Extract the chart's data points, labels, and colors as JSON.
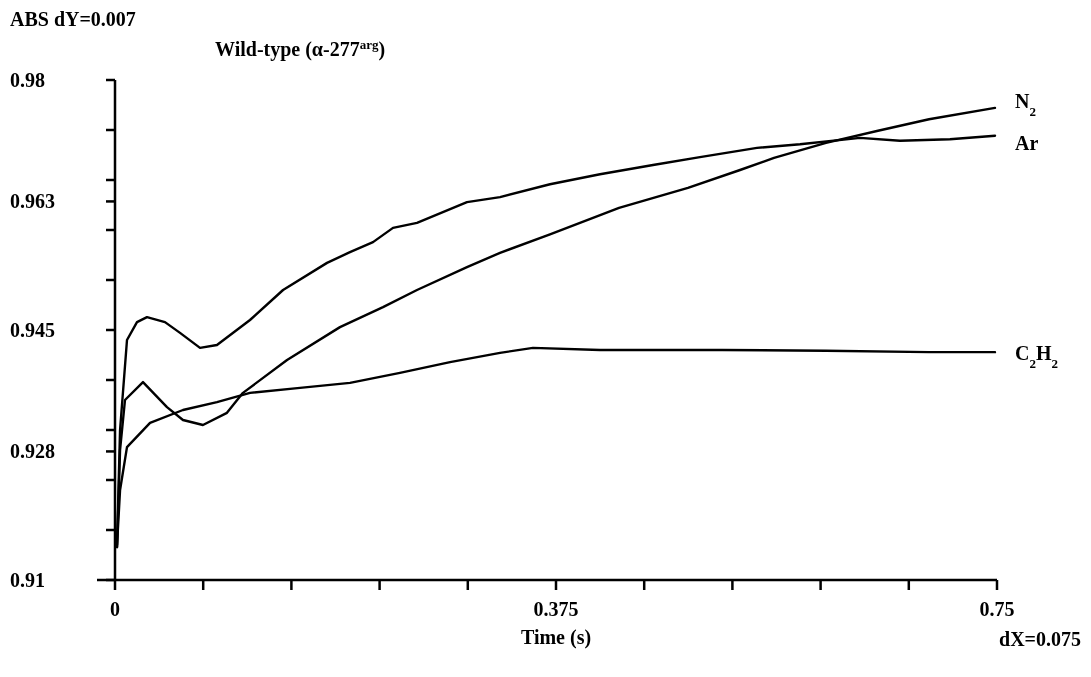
{
  "chart_data": {
    "type": "line",
    "title": "Wild-type (α-277$^{arg}$)",
    "ylabel": "ABS dY=0.007",
    "xlabel": "Time (s)",
    "annotations": [
      "dX=0.075"
    ],
    "xlim": [
      0,
      0.75
    ],
    "ylim": [
      0.91,
      0.98
    ],
    "xticks": [
      0,
      {
        "value": 0.075,
        "label": null
      },
      {
        "value": 0.15,
        "label": null
      },
      {
        "value": 0.225,
        "label": null
      },
      {
        "value": 0.3,
        "label": null
      },
      0.375,
      {
        "value": 0.45,
        "label": null
      },
      {
        "value": 0.525,
        "label": null
      },
      {
        "value": 0.6,
        "label": null
      },
      {
        "value": 0.675,
        "label": null
      },
      0.75
    ],
    "yticks": [
      0.91,
      {
        "value": 0.917,
        "label": null
      },
      {
        "value": 0.924,
        "label": null
      },
      0.928,
      {
        "value": 0.931,
        "label": null
      },
      {
        "value": 0.938,
        "label": null
      },
      0.945,
      {
        "value": 0.952,
        "label": null
      },
      {
        "value": 0.959,
        "label": null
      },
      0.963,
      {
        "value": 0.966,
        "label": null
      },
      {
        "value": 0.973,
        "label": null
      },
      0.98
    ],
    "grid": false,
    "legend": false,
    "marker": "none",
    "line_style": "solid",
    "series": [
      {
        "name": "N$_{2}$",
        "color": "#000000",
        "x": [
          0.0017,
          0.0043,
          0.0085,
          0.0238,
          0.0442,
          0.0578,
          0.0748,
          0.0952,
          0.1088,
          0.1463,
          0.1913,
          0.2279,
          0.2568,
          0.2993,
          0.3274,
          0.3699,
          0.4286,
          0.4872,
          0.5315,
          0.5604,
          0.6046,
          0.6488,
          0.6922,
          0.7483
        ],
        "values": [
          0.9146,
          0.9282,
          0.9352,
          0.9377,
          0.9342,
          0.9324,
          0.9317,
          0.9334,
          0.9362,
          0.9408,
          0.9454,
          0.9482,
          0.9506,
          0.9538,
          0.9558,
          0.9584,
          0.9621,
          0.9649,
          0.9674,
          0.9691,
          0.9712,
          0.9729,
          0.9745,
          0.9761
        ]
      },
      {
        "name": "Ar",
        "color": "#000000",
        "x": [
          0.0017,
          0.0043,
          0.0102,
          0.0187,
          0.0272,
          0.0425,
          0.0553,
          0.0723,
          0.0867,
          0.1148,
          0.1429,
          0.1803,
          0.1998,
          0.2194,
          0.2364,
          0.2568,
          0.2993,
          0.3274,
          0.3699,
          0.4124,
          0.4575,
          0.4974,
          0.5459,
          0.5825,
          0.6335,
          0.6675,
          0.71,
          0.7483
        ],
        "values": [
          0.9146,
          0.931,
          0.9436,
          0.9461,
          0.9468,
          0.9461,
          0.9446,
          0.9425,
          0.9429,
          0.9464,
          0.9506,
          0.9544,
          0.9559,
          0.9573,
          0.9593,
          0.96,
          0.9629,
          0.9636,
          0.9654,
          0.9668,
          0.9681,
          0.9692,
          0.9705,
          0.971,
          0.9719,
          0.9715,
          0.9717,
          0.9722
        ]
      },
      {
        "name": "C$_{2}$H$_{2}$",
        "color": "#000000",
        "x": [
          0.0017,
          0.0043,
          0.0102,
          0.0298,
          0.0578,
          0.0867,
          0.1148,
          0.1573,
          0.1998,
          0.2423,
          0.2849,
          0.3274,
          0.3554,
          0.4124,
          0.5162,
          0.6046,
          0.6922,
          0.7483
        ],
        "values": [
          0.9149,
          0.9226,
          0.9286,
          0.932,
          0.9338,
          0.9349,
          0.9362,
          0.9369,
          0.9376,
          0.939,
          0.9405,
          0.9418,
          0.9425,
          0.9422,
          0.9422,
          0.9421,
          0.9419,
          0.9419
        ]
      }
    ]
  }
}
